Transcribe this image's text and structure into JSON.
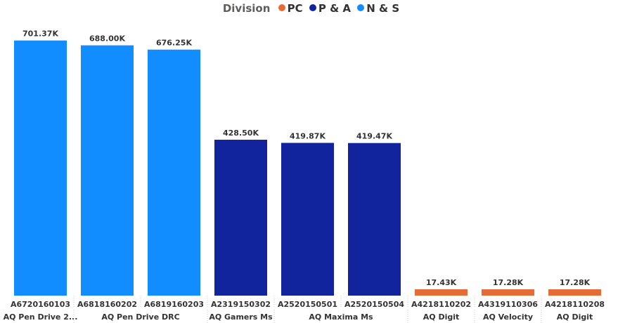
{
  "chart_data": {
    "type": "bar",
    "legend": {
      "title": "Division",
      "position": "top-center",
      "entries": [
        {
          "name": "PC",
          "color": "#E66C37"
        },
        {
          "name": "P & A",
          "color": "#12239E"
        },
        {
          "name": "N & S",
          "color": "#118DFF"
        }
      ]
    },
    "bars": [
      {
        "code": "A6720160103",
        "value": 701.37,
        "label": "701.37K",
        "division": "N & S"
      },
      {
        "code": "A6818160202",
        "value": 688.0,
        "label": "688.00K",
        "division": "N & S"
      },
      {
        "code": "A6819160203",
        "value": 676.25,
        "label": "676.25K",
        "division": "N & S"
      },
      {
        "code": "A2319150302",
        "value": 428.5,
        "label": "428.50K",
        "division": "P & A"
      },
      {
        "code": "A2520150501",
        "value": 419.87,
        "label": "419.87K",
        "division": "P & A"
      },
      {
        "code": "A2520150504",
        "value": 419.47,
        "label": "419.47K",
        "division": "P & A"
      },
      {
        "code": "A4218110202",
        "value": 17.43,
        "label": "17.43K",
        "division": "PC"
      },
      {
        "code": "A4319110306",
        "value": 17.28,
        "label": "17.28K",
        "division": "PC"
      },
      {
        "code": "A4218110208",
        "value": 17.28,
        "label": "17.28K",
        "division": "PC"
      }
    ],
    "groups": [
      {
        "name": "AQ Pen Drive 2...",
        "start": 0,
        "end": 0
      },
      {
        "name": "AQ Pen Drive DRC",
        "start": 1,
        "end": 2
      },
      {
        "name": "AQ Gamers Ms",
        "start": 3,
        "end": 3
      },
      {
        "name": "AQ Maxima Ms",
        "start": 4,
        "end": 5
      },
      {
        "name": "AQ Digit",
        "start": 6,
        "end": 6
      },
      {
        "name": "AQ Velocity",
        "start": 7,
        "end": 7
      },
      {
        "name": "AQ Digit",
        "start": 8,
        "end": 8
      }
    ],
    "value_unit": "K",
    "ylim": [
      0,
      720
    ],
    "grid": false,
    "xlabel": "",
    "ylabel": ""
  }
}
